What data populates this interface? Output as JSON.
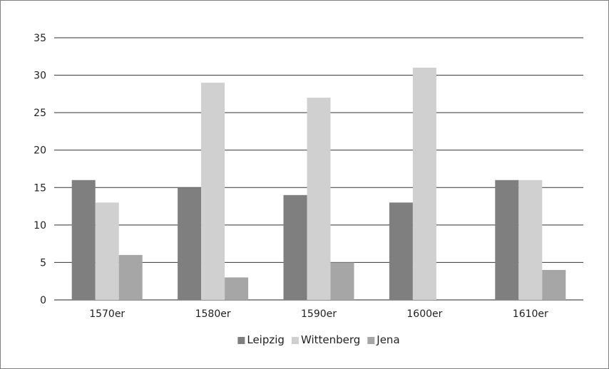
{
  "chart_data": {
    "type": "bar",
    "title": "",
    "xlabel": "",
    "ylabel": "",
    "categories": [
      "1570er",
      "1580er",
      "1590er",
      "1600er",
      "1610er"
    ],
    "series": [
      {
        "name": "Leipzig",
        "values": [
          16,
          15,
          14,
          13,
          16
        ],
        "color": "#7f7f7f"
      },
      {
        "name": "Wittenberg",
        "values": [
          13,
          29,
          27,
          31,
          16
        ],
        "color": "#d0d0d0"
      },
      {
        "name": "Jena",
        "values": [
          6,
          3,
          5,
          0,
          4
        ],
        "color": "#a6a6a6"
      }
    ],
    "ylim": [
      0,
      35
    ],
    "yticks": [
      0,
      5,
      10,
      15,
      20,
      25,
      30,
      35
    ],
    "grid": true,
    "legend_position": "bottom"
  }
}
